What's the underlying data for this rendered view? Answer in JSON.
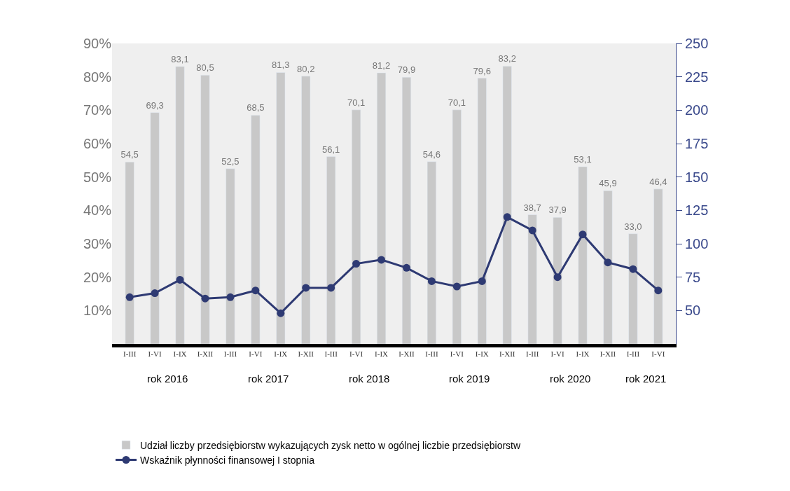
{
  "chart_data": {
    "type": "bar",
    "categories": [
      "I-III",
      "I-VI",
      "I-IX",
      "I-XII",
      "I-III",
      "I-VI",
      "I-IX",
      "I-XII",
      "I-III",
      "I-VI",
      "I-IX",
      "I-XII",
      "I-III",
      "I-VI",
      "I-IX",
      "I-XII",
      "I-III",
      "I-VI",
      "I-IX",
      "I-XII",
      "I-III",
      "I-VI"
    ],
    "series": [
      {
        "name": "Udział liczby przedsiębiorstw wykazujących zysk netto w ogólnej liczbie przedsiębiorstw",
        "color": "#c8c8c8",
        "values": [
          54.5,
          69.3,
          83.1,
          80.5,
          52.5,
          68.5,
          81.3,
          80.2,
          56.1,
          70.1,
          81.2,
          79.9,
          54.6,
          70.1,
          79.6,
          83.2,
          38.7,
          37.9,
          53.1,
          45.9,
          33.0,
          46.4
        ],
        "value_labels": [
          "54,5",
          "69,3",
          "83,1",
          "80,5",
          "52,5",
          "68,5",
          "81,3",
          "80,2",
          "56,1",
          "70,1",
          "81,2",
          "79,9",
          "54,6",
          "70,1",
          "79,6",
          "83,2",
          "38,7",
          "37,9",
          "53,1",
          "45,9",
          "33,0",
          "46,4"
        ]
      },
      {
        "name": "Wskaźnik płynności finansowej I stopnia",
        "type": "line",
        "axis": "y2",
        "color": "#2e3a73",
        "marker": "circle",
        "values": [
          60,
          63,
          73,
          59,
          60,
          65,
          48,
          67,
          67,
          85,
          88,
          82,
          72,
          68,
          72,
          120,
          110,
          75,
          107,
          86,
          81,
          65
        ]
      }
    ],
    "ylim": [
      0,
      90
    ],
    "yticks": [
      {
        "value": 10,
        "label": "10%"
      },
      {
        "value": 20,
        "label": "20%"
      },
      {
        "value": 30,
        "label": "30%"
      },
      {
        "value": 40,
        "label": "40%"
      },
      {
        "value": 50,
        "label": "50%"
      },
      {
        "value": 60,
        "label": "60%"
      },
      {
        "value": 70,
        "label": "70%"
      },
      {
        "value": 80,
        "label": "80%"
      },
      {
        "value": 90,
        "label": "90%"
      }
    ],
    "y2lim": [
      25,
      250
    ],
    "y2ticks": [
      50,
      75,
      100,
      125,
      150,
      175,
      200,
      225,
      250
    ],
    "annotations": [
      "rok 2016",
      "rok 2017",
      "rok 2018",
      "rok 2019",
      "rok 2020",
      "rok 2021"
    ],
    "grid": false,
    "legend": "bottom left"
  }
}
